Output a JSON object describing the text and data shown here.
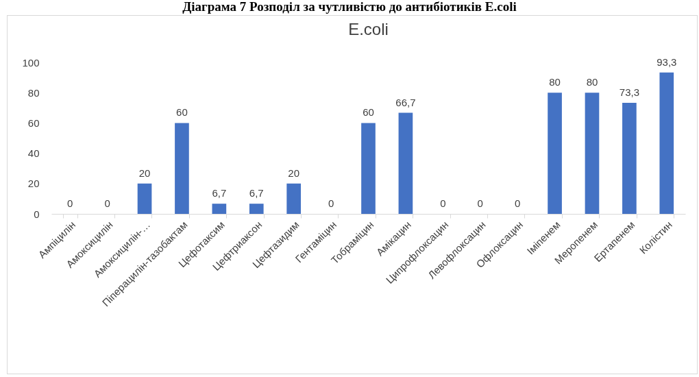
{
  "chart_data": {
    "type": "bar",
    "title": "E.coli",
    "annotations": [
      "Діаграма 7 Розподіл за чутливістю до антибіотиків E.coli"
    ],
    "categories": [
      "Ампіцилін",
      "Амоксицилін",
      "Амоксицилін-…",
      "Піперацилін-тазобактам",
      "Цефотаксим",
      "Цефтриаксон",
      "Цефтазидим",
      "Гентаміцин",
      "Тобраміцин",
      "Амікацин",
      "Ципрофлоксацин",
      "Левофлоксацин",
      "Офлоксацин",
      "Іміпенем",
      "Меропенем",
      "Ертапенем",
      "Колістин"
    ],
    "values": [
      0,
      0,
      20,
      60,
      6.7,
      6.7,
      20,
      0,
      60,
      66.7,
      0,
      0,
      0,
      80,
      80,
      73.3,
      93.3
    ],
    "value_labels": [
      "0",
      "0",
      "20",
      "60",
      "6,7",
      "6,7",
      "20",
      "0",
      "60",
      "66,7",
      "0",
      "0",
      "0",
      "80",
      "80",
      "73,3",
      "93,3"
    ],
    "color": "#4472c4",
    "ylim": [
      0,
      100
    ],
    "yticks": [
      0,
      20,
      40,
      60,
      80,
      100
    ],
    "grid": false
  }
}
